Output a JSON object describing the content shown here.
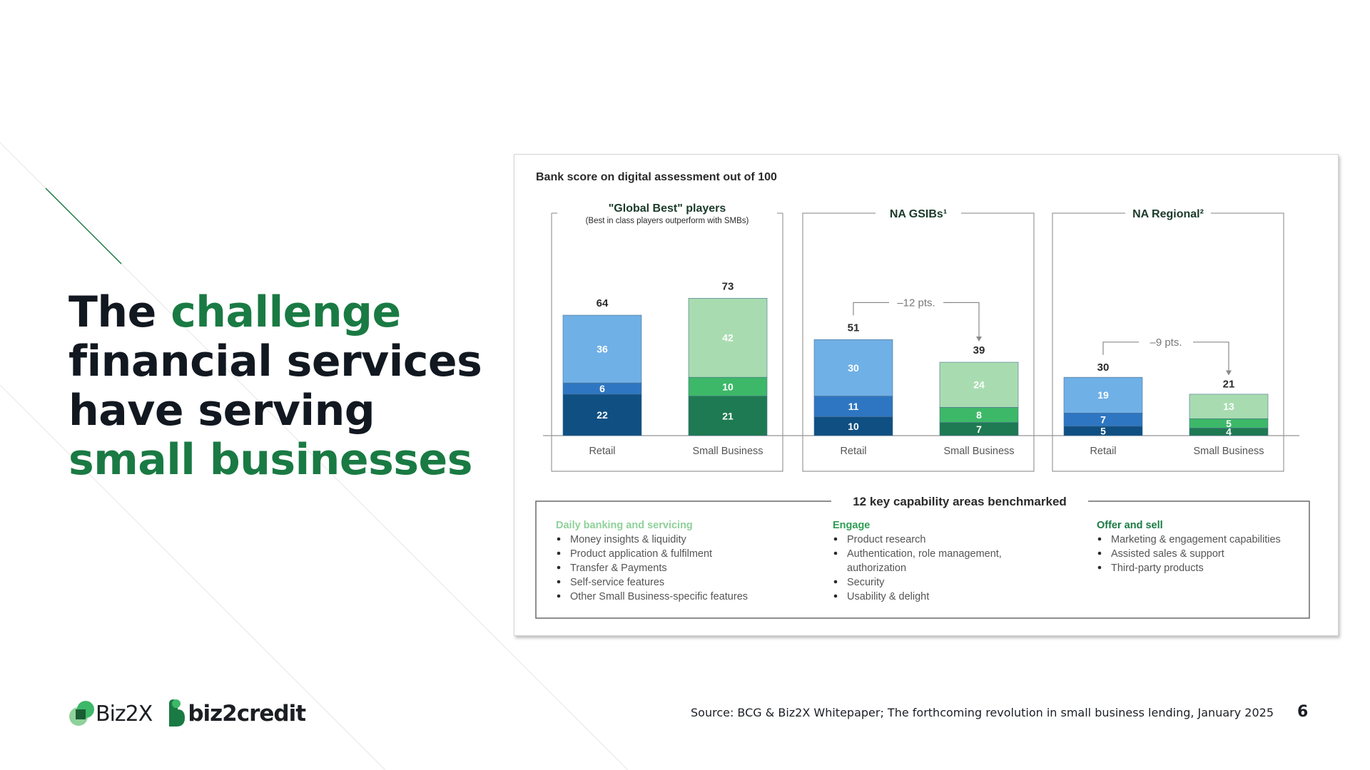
{
  "headline": {
    "part1": "The ",
    "part2": "challenge",
    "part3": "financial services have serving",
    "part4": "small businesses"
  },
  "chart_data": {
    "type": "bar",
    "title": "Bank score on digital assessment out of 100",
    "groups": [
      {
        "title": "\"Global Best\" players",
        "subtitle": "(Best in class players outperform with SMBs)",
        "bars": [
          {
            "category": "Retail",
            "total": 64,
            "segments": [
              22,
              6,
              36
            ]
          },
          {
            "category": "Small Business",
            "total": 73,
            "segments": [
              21,
              10,
              42
            ]
          }
        ],
        "gap": ""
      },
      {
        "title": "NA GSIBs¹",
        "subtitle": "",
        "bars": [
          {
            "category": "Retail",
            "total": 51,
            "segments": [
              10,
              11,
              30
            ]
          },
          {
            "category": "Small Business",
            "total": 39,
            "segments": [
              7,
              8,
              24
            ]
          }
        ],
        "gap": "–12 pts."
      },
      {
        "title": "NA Regional²",
        "subtitle": "",
        "bars": [
          {
            "category": "Retail",
            "total": 30,
            "segments": [
              5,
              7,
              19
            ]
          },
          {
            "category": "Small Business",
            "total": 21,
            "segments": [
              4,
              5,
              13
            ]
          }
        ],
        "gap": "–9 pts."
      }
    ],
    "colors": {
      "retail": [
        "#0f4f82",
        "#2e76c2",
        "#6fb0e6"
      ],
      "small_business": [
        "#1e7a52",
        "#3db868",
        "#a8dcb0"
      ],
      "retail_labels": [
        "#ffffff",
        "#ffffff",
        "#ffffff"
      ],
      "small_business_labels": [
        "#ffffff",
        "#ffffff",
        "#ffffff"
      ]
    },
    "legend": "none",
    "grid": false
  },
  "capabilities": {
    "title": "12 key capability areas benchmarked",
    "columns": [
      {
        "heading": "Daily banking and servicing",
        "heading_color": "#8fd19a",
        "items": [
          "Money insights & liquidity",
          "Product application & fulfilment",
          "Transfer & Payments",
          "Self-service features",
          "Other Small Business-specific features"
        ]
      },
      {
        "heading": "Engage",
        "heading_color": "#2e9e55",
        "items": [
          "Product research",
          "Authentication, role management, authorization",
          "Security",
          "Usability & delight"
        ]
      },
      {
        "heading": "Offer and sell",
        "heading_color": "#1a7a43",
        "items": [
          "Marketing & engagement capabilities",
          "Assisted sales & support",
          "Third-party products"
        ]
      }
    ]
  },
  "footer": {
    "logo1": "Biz2X",
    "logo2": "biz2credit",
    "source": "Source: BCG & Biz2X Whitepaper; The forthcoming revolution in small business lending, January 2025",
    "page": "6"
  },
  "colors": {
    "accent": "#1a7a43",
    "text": "#121820"
  }
}
